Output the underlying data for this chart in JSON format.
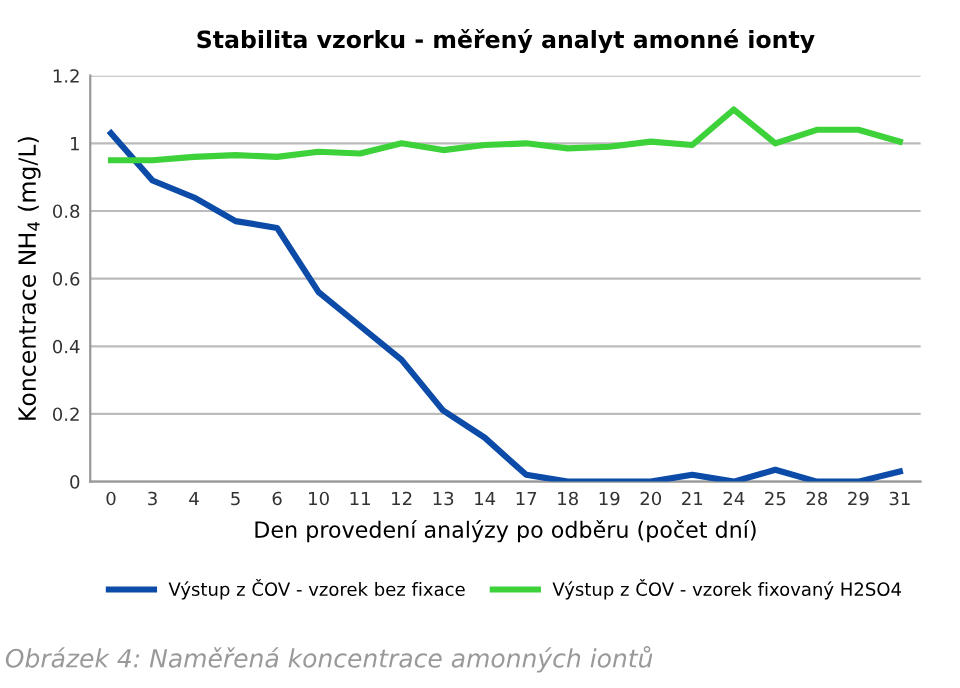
{
  "chart_data": {
    "type": "line",
    "title": "Stabilita vzorku - měřený analyt amonné ionty",
    "xlabel": "Den provedení analýzy po odběru (počet dní)",
    "ylabel": "Koncentrace NH$_{4}$ (mg/L)",
    "categories": [
      "0",
      "3",
      "4",
      "5",
      "6",
      "10",
      "11",
      "12",
      "13",
      "14",
      "17",
      "18",
      "19",
      "20",
      "21",
      "24",
      "25",
      "28",
      "29",
      "31"
    ],
    "series": [
      {
        "name": "Výstup z ČOV - vzorek bez fixace",
        "color": "#0c4ca8",
        "values": [
          1.03,
          0.89,
          0.84,
          0.77,
          0.75,
          0.56,
          0.46,
          0.36,
          0.21,
          0.13,
          0.02,
          0,
          0,
          0,
          0.02,
          0,
          0.035,
          0,
          0,
          0.03
        ]
      },
      {
        "name": "Výstup z ČOV - vzorek fixovaný H2SO4",
        "color": "#3dd13a",
        "values": [
          0.95,
          0.95,
          0.96,
          0.965,
          0.96,
          0.975,
          0.97,
          1.0,
          0.98,
          0.995,
          1.0,
          0.985,
          0.99,
          1.005,
          0.995,
          1.1,
          1.0,
          1.04,
          1.04,
          1.005
        ]
      }
    ],
    "ylim": [
      0,
      1.2
    ],
    "yticks": [
      0,
      0.2,
      0.4,
      0.6,
      0.8,
      1,
      1.2
    ],
    "grid": "y",
    "legend": "bottom",
    "marker": "none",
    "line_style": "solid",
    "annotations": [
      "Obrázek 4: Naměřená koncentrace amonných iontů"
    ]
  }
}
